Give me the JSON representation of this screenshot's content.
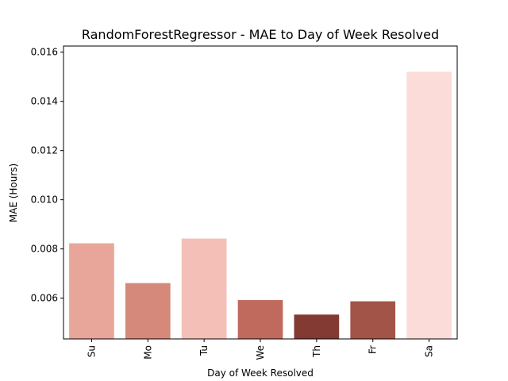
{
  "chart_data": {
    "type": "bar",
    "title": "RandomForestRegressor - MAE to Day of Week Resolved",
    "xlabel": "Day of Week Resolved",
    "ylabel": "MAE (Hours)",
    "categories": [
      "Su",
      "Mo",
      "Tu",
      "We",
      "Th",
      "Fr",
      "Sa"
    ],
    "values": [
      0.00823,
      0.00661,
      0.00842,
      0.00592,
      0.00533,
      0.00587,
      0.0152
    ],
    "colors": [
      "#e8a69a",
      "#d4897a",
      "#f3bfb7",
      "#c06a5e",
      "#823a33",
      "#a35448",
      "#fbdcd8"
    ],
    "ylim": [
      0.00434,
      0.01625
    ],
    "yticks": [
      0.006,
      0.008,
      0.01,
      0.012,
      0.014,
      0.016
    ],
    "ytick_labels": [
      "0.006",
      "0.008",
      "0.010",
      "0.012",
      "0.014",
      "0.016"
    ],
    "grid": false,
    "legend": "none"
  }
}
